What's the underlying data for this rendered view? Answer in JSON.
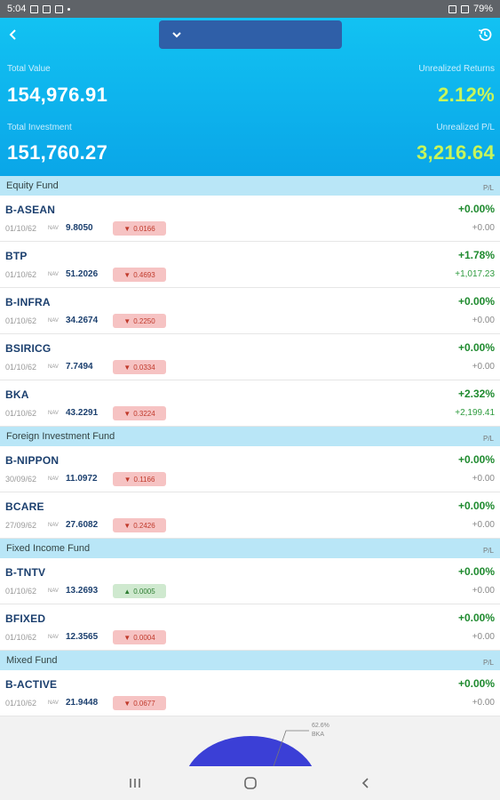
{
  "status": {
    "time": "5:04",
    "battery": "79%"
  },
  "header": {
    "total_value_label": "Total Value",
    "total_value": "154,976.91",
    "unrealized_returns_label": "Unrealized Returns",
    "unrealized_returns": "2.12%",
    "total_investment_label": "Total Investment",
    "total_investment": "151,760.27",
    "unrealized_pl_label": "Unrealized P/L",
    "unrealized_pl": "3,216.64"
  },
  "sections": [
    {
      "title": "Equity Fund",
      "pl_label": "P/L"
    },
    {
      "title": "Foreign Investment Fund",
      "pl_label": "P/L"
    },
    {
      "title": "Fixed Income Fund",
      "pl_label": "P/L"
    },
    {
      "title": "Mixed Fund",
      "pl_label": "P/L"
    }
  ],
  "funds": [
    {
      "name": "B-ASEAN",
      "date": "01/10/62",
      "nav_label": "NAV",
      "nav": "9.8050",
      "change": "0.0166",
      "direction": "down",
      "pct": "+0.00%",
      "pl": "+0.00"
    },
    {
      "name": "BTP",
      "date": "01/10/62",
      "nav_label": "NAV",
      "nav": "51.2026",
      "change": "0.4693",
      "direction": "down",
      "pct": "+1.78%",
      "pl": "+1,017.23"
    },
    {
      "name": "B-INFRA",
      "date": "01/10/62",
      "nav_label": "NAV",
      "nav": "34.2674",
      "change": "0.2250",
      "direction": "down",
      "pct": "+0.00%",
      "pl": "+0.00"
    },
    {
      "name": "BSIRICG",
      "date": "01/10/62",
      "nav_label": "NAV",
      "nav": "7.7494",
      "change": "0.0334",
      "direction": "down",
      "pct": "+0.00%",
      "pl": "+0.00"
    },
    {
      "name": "BKA",
      "date": "01/10/62",
      "nav_label": "NAV",
      "nav": "43.2291",
      "change": "0.3224",
      "direction": "down",
      "pct": "+2.32%",
      "pl": "+2,199.41"
    },
    {
      "name": "B-NIPPON",
      "date": "30/09/62",
      "nav_label": "NAV",
      "nav": "11.0972",
      "change": "0.1166",
      "direction": "down",
      "pct": "+0.00%",
      "pl": "+0.00"
    },
    {
      "name": "BCARE",
      "date": "27/09/62",
      "nav_label": "NAV",
      "nav": "27.6082",
      "change": "0.2426",
      "direction": "down",
      "pct": "+0.00%",
      "pl": "+0.00"
    },
    {
      "name": "B-TNTV",
      "date": "01/10/62",
      "nav_label": "NAV",
      "nav": "13.2693",
      "change": "0.0005",
      "direction": "up",
      "pct": "+0.00%",
      "pl": "+0.00"
    },
    {
      "name": "BFIXED",
      "date": "01/10/62",
      "nav_label": "NAV",
      "nav": "12.3565",
      "change": "0.0004",
      "direction": "down",
      "pct": "+0.00%",
      "pl": "+0.00"
    },
    {
      "name": "B-ACTIVE",
      "date": "01/10/62",
      "nav_label": "NAV",
      "nav": "21.9448",
      "change": "0.0677",
      "direction": "down",
      "pct": "+0.00%",
      "pl": "+0.00"
    }
  ],
  "allocation": {
    "label_pct": "62.6%",
    "label_name": "BKA",
    "color": "#3b3fd6"
  },
  "colors": {
    "header": "#0aa6e8",
    "section": "#b9e6f7",
    "gain": "#1e8a2e",
    "down_badge": "#f6c3c3",
    "up_badge": "#cfe9cf"
  }
}
